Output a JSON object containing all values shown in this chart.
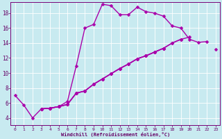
{
  "xlabel": "Windchill (Refroidissement éolien,°C)",
  "background_color": "#c8eaf0",
  "line_color": "#aa00aa",
  "markersize": 2.5,
  "linewidth": 1.0,
  "xlim": [
    -0.5,
    23.5
  ],
  "ylim": [
    3.0,
    19.5
  ],
  "xticks": [
    0,
    1,
    2,
    3,
    4,
    5,
    6,
    7,
    8,
    9,
    10,
    11,
    12,
    13,
    14,
    15,
    16,
    17,
    18,
    19,
    20,
    21,
    22,
    23
  ],
  "yticks": [
    4,
    6,
    8,
    10,
    12,
    14,
    16,
    18
  ],
  "series": [
    {
      "x": [
        0,
        1,
        2,
        3,
        4,
        5,
        6,
        7,
        8,
        9,
        10,
        11,
        12,
        13,
        14,
        15,
        16,
        17,
        18,
        19,
        20,
        21,
        22
      ],
      "y": [
        7.0,
        5.7,
        4.0,
        5.2,
        5.3,
        5.5,
        6.2,
        10.9,
        16.0,
        16.5,
        19.2,
        19.0,
        17.8,
        17.8,
        18.8,
        18.2,
        18.0,
        17.6,
        16.3,
        16.0,
        14.5,
        14.1,
        14.2
      ]
    },
    {
      "x": [
        3,
        4,
        5,
        6,
        7,
        8,
        9,
        10,
        11,
        12,
        13,
        14,
        15,
        16,
        17,
        18,
        19,
        20,
        21,
        22,
        23
      ],
      "y": [
        5.2,
        5.3,
        5.5,
        5.8,
        7.3,
        7.6,
        8.5,
        9.2,
        9.9,
        10.6,
        11.2,
        11.9,
        12.3,
        12.8,
        13.3,
        14.0,
        14.5,
        null,
        null,
        null,
        13.2
      ]
    },
    {
      "x": [
        3,
        4,
        5,
        6,
        7,
        8,
        9,
        10,
        11,
        12,
        13,
        14,
        15,
        16,
        17,
        18,
        19,
        20,
        21,
        22,
        23
      ],
      "y": [
        5.2,
        5.3,
        5.5,
        5.8,
        7.3,
        7.6,
        8.5,
        9.2,
        9.9,
        10.6,
        11.2,
        11.9,
        12.3,
        12.8,
        13.3,
        14.0,
        14.5,
        14.8,
        null,
        null,
        null
      ]
    },
    {
      "x": [
        3,
        4,
        5,
        6,
        7,
        8,
        9,
        10,
        11,
        12,
        13,
        14,
        15,
        16,
        17,
        18,
        19,
        20,
        21,
        22,
        23
      ],
      "y": [
        5.2,
        5.3,
        5.5,
        5.8,
        7.3,
        7.6,
        8.5,
        9.2,
        9.9,
        10.6,
        11.2,
        11.9,
        12.3,
        12.8,
        13.3,
        null,
        null,
        null,
        null,
        null,
        null
      ]
    }
  ]
}
